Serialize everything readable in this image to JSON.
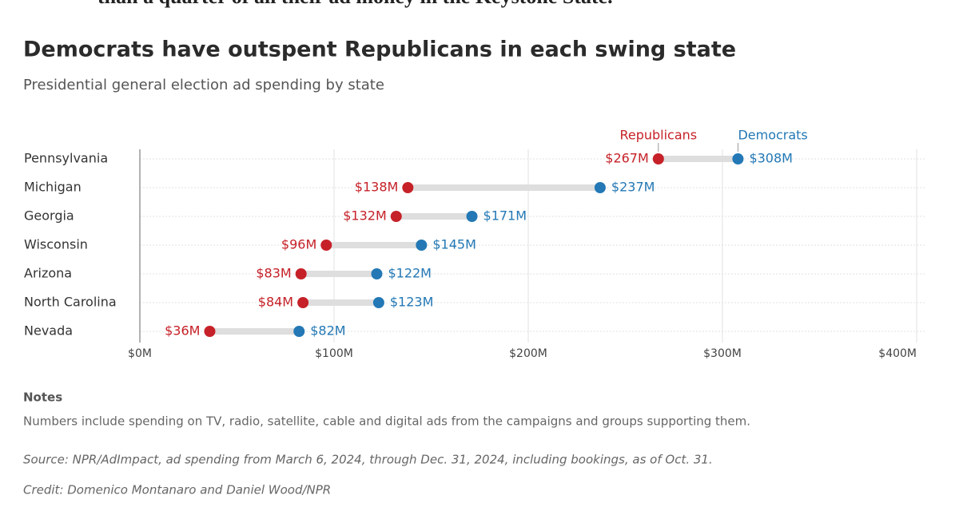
{
  "article_text": "than a quarter of all their ad money in the Keystone State.",
  "chart_data": {
    "type": "dumbbell",
    "title": "Democrats have outspent Republicans in each swing state",
    "subtitle": "Presidential general election ad spending by state",
    "categories": [
      "Pennsylvania",
      "Michigan",
      "Georgia",
      "Wisconsin",
      "Arizona",
      "North Carolina",
      "Nevada"
    ],
    "series": [
      {
        "name": "Republicans",
        "color": "#c62128",
        "values": [
          267,
          138,
          132,
          96,
          83,
          84,
          36
        ],
        "value_labels": [
          "$267M",
          "$138M",
          "$132M",
          "$96M",
          "$83M",
          "$84M",
          "$36M"
        ]
      },
      {
        "name": "Democrats",
        "color": "#2378b5",
        "values": [
          308,
          237,
          171,
          145,
          122,
          123,
          82
        ],
        "value_labels": [
          "$308M",
          "$237M",
          "$171M",
          "$145M",
          "$122M",
          "$123M",
          "$82M"
        ]
      }
    ],
    "xlim": [
      0,
      400
    ],
    "xticks": [
      {
        "value": 0,
        "label": "$0M"
      },
      {
        "value": 100,
        "label": "$100M"
      },
      {
        "value": 200,
        "label": "$200M"
      },
      {
        "value": 300,
        "label": "$300M"
      },
      {
        "value": 400,
        "label": "$400M"
      }
    ],
    "grid": true,
    "notes_heading": "Notes",
    "notes": "Numbers include spending on TV, radio, satellite, cable and digital ads from the campaigns and groups supporting them.",
    "source": "Source: NPR/AdImpact, ad spending from March 6, 2024, through Dec. 31, 2024, including bookings, as of Oct. 31.",
    "credit": "Credit: Domenico Montanaro and Daniel Wood/NPR"
  }
}
